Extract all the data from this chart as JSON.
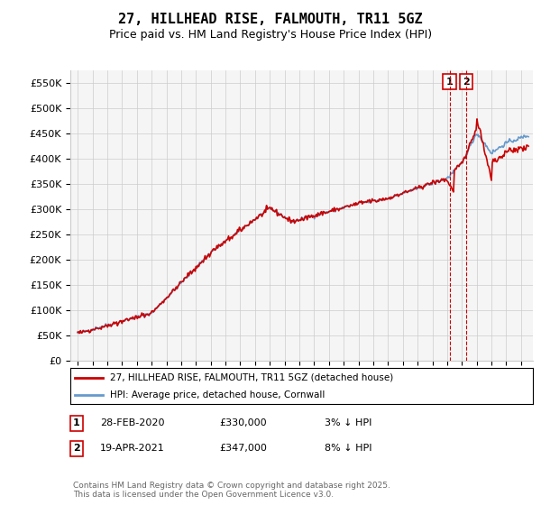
{
  "title": "27, HILLHEAD RISE, FALMOUTH, TR11 5GZ",
  "subtitle": "Price paid vs. HM Land Registry's House Price Index (HPI)",
  "ylim": [
    0,
    575000
  ],
  "yticks": [
    0,
    50000,
    100000,
    150000,
    200000,
    250000,
    300000,
    350000,
    400000,
    450000,
    500000,
    550000
  ],
  "legend_line1": "27, HILLHEAD RISE, FALMOUTH, TR11 5GZ (detached house)",
  "legend_line2": "HPI: Average price, detached house, Cornwall",
  "transaction1_date": "28-FEB-2020",
  "transaction1_price": "£330,000",
  "transaction1_pct": "3% ↓ HPI",
  "transaction2_date": "19-APR-2021",
  "transaction2_price": "£347,000",
  "transaction2_pct": "8% ↓ HPI",
  "footnote": "Contains HM Land Registry data © Crown copyright and database right 2025.\nThis data is licensed under the Open Government Licence v3.0.",
  "hpi_color": "#6699cc",
  "price_color": "#cc0000",
  "vline_color": "#cc0000",
  "background_color": "#ffffff",
  "grid_color": "#cccccc",
  "transaction1_x": 2020.16,
  "transaction2_x": 2021.3
}
